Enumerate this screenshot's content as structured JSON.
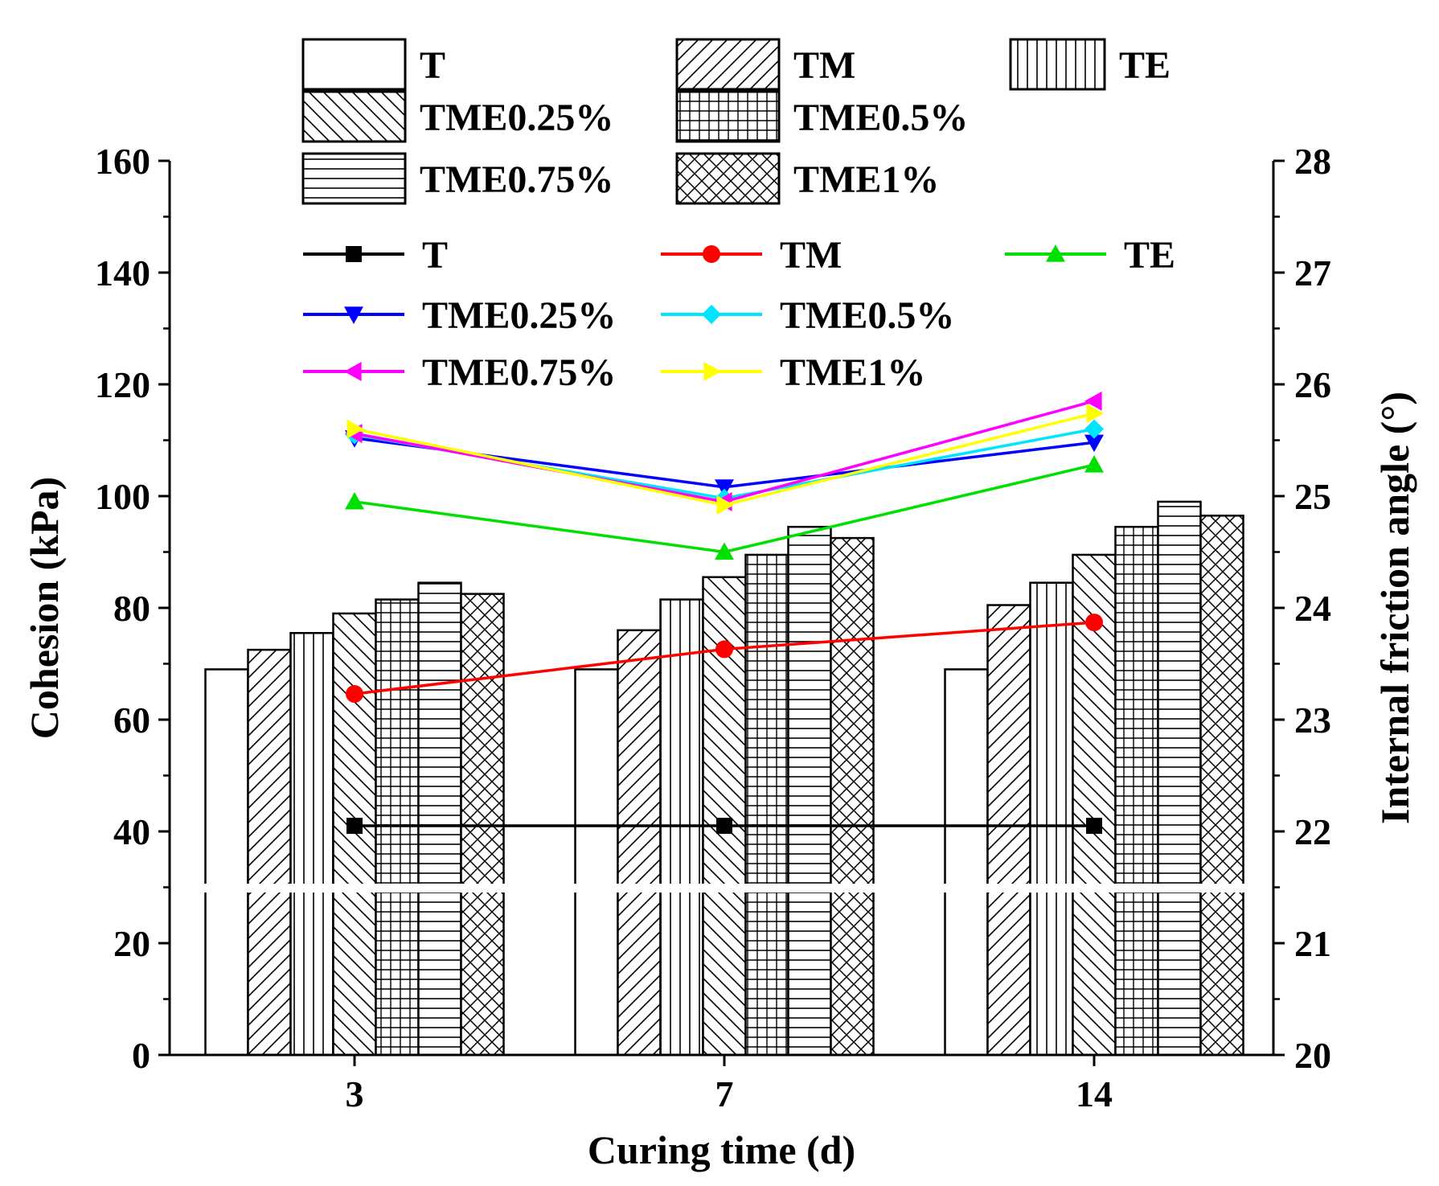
{
  "chart_data": {
    "type": "bar",
    "xlabel": "Curing time (d)",
    "ylabel_left": "Cohesion (kPa)",
    "ylabel_right": "Internal friction angle (°)",
    "categories": [
      "3",
      "7",
      "14"
    ],
    "ylim_left": [
      0,
      160
    ],
    "yticks_left": [
      0,
      20,
      40,
      60,
      80,
      100,
      120,
      140,
      160
    ],
    "ylim_right": [
      20,
      28
    ],
    "yticks_right": [
      20,
      21,
      22,
      23,
      24,
      25,
      26,
      27,
      28
    ],
    "bar_series": [
      {
        "name": "T",
        "pattern": "none",
        "values": [
          69,
          69,
          69
        ]
      },
      {
        "name": "TM",
        "pattern": "diag-up",
        "values": [
          72.5,
          76,
          80.5
        ]
      },
      {
        "name": "TE",
        "pattern": "vertical",
        "values": [
          75.5,
          81.5,
          84.5
        ]
      },
      {
        "name": "TME0.25%",
        "pattern": "diag-down",
        "values": [
          79,
          85.5,
          89.5
        ]
      },
      {
        "name": "TME0.5%",
        "pattern": "grid",
        "values": [
          81.5,
          89.5,
          94.5
        ]
      },
      {
        "name": "TME0.75%",
        "pattern": "horizontal",
        "values": [
          84.5,
          94.5,
          99
        ]
      },
      {
        "name": "TME1%",
        "pattern": "cross",
        "values": [
          82.5,
          92.5,
          96.5
        ]
      }
    ],
    "line_series": [
      {
        "name": "T",
        "color": "#000000",
        "marker": "square",
        "values": [
          22.05,
          22.05,
          22.05
        ]
      },
      {
        "name": "TM",
        "color": "#ff0000",
        "marker": "circle",
        "values": [
          23.23,
          23.63,
          23.87
        ]
      },
      {
        "name": "TE",
        "color": "#00e000",
        "marker": "triangle-up",
        "values": [
          24.95,
          24.5,
          25.28
        ]
      },
      {
        "name": "TME0.25%",
        "color": "#0000ff",
        "marker": "triangle-down",
        "values": [
          25.52,
          25.08,
          25.48
        ]
      },
      {
        "name": "TME0.5%",
        "color": "#00e5ff",
        "marker": "diamond",
        "values": [
          25.55,
          24.98,
          25.6
        ]
      },
      {
        "name": "TME0.75%",
        "color": "#ff00ff",
        "marker": "triangle-left",
        "values": [
          25.56,
          24.95,
          25.85
        ]
      },
      {
        "name": "TME1%",
        "color": "#ffff00",
        "marker": "triangle-right",
        "values": [
          25.6,
          24.92,
          25.74
        ]
      }
    ]
  }
}
